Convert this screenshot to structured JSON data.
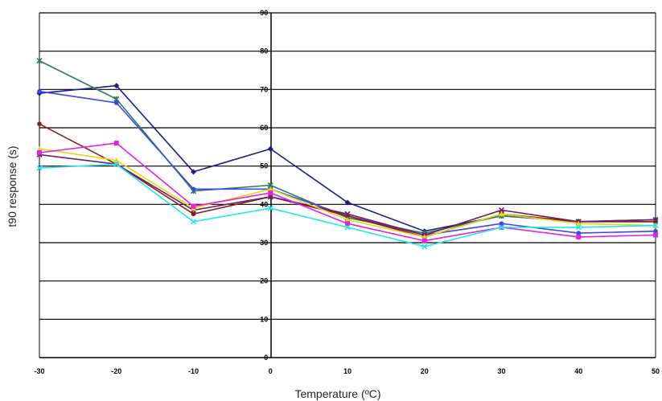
{
  "chart_data": {
    "type": "line",
    "title": "",
    "xlabel": "Temperature (ºC)",
    "ylabel": "t90 response (s)",
    "x": [
      -30,
      -20,
      -10,
      0,
      10,
      20,
      30,
      40,
      50
    ],
    "x_tick_labels": [
      "-30",
      "-20",
      "-10",
      "0",
      "10",
      "20",
      "30",
      "40",
      "50"
    ],
    "y_tick_labels": [
      "0",
      "10",
      "20",
      "30",
      "40",
      "50",
      "60",
      "70",
      "80",
      "90"
    ],
    "ylim": [
      0,
      90
    ],
    "grid": "horizontal",
    "legend": "none",
    "series": [
      {
        "color": "#1c1c8c",
        "marker": "diamond",
        "values": [
          69,
          71,
          48.5,
          54.5,
          40.5,
          33,
          37,
          35.5,
          36
        ]
      },
      {
        "color": "#2d7a5c",
        "marker": "star",
        "values": [
          77.5,
          67.5,
          43.5,
          45,
          36.5,
          32.5,
          37,
          35.5,
          35.5
        ]
      },
      {
        "color": "#3a4adf",
        "marker": "circle",
        "values": [
          69.5,
          66.5,
          44,
          44,
          37,
          32,
          35,
          32.5,
          33
        ]
      },
      {
        "color": "#8b1a1a",
        "marker": "circle",
        "values": [
          61,
          50.5,
          37.5,
          42,
          37,
          31.5,
          37.5,
          35.5,
          35.5
        ]
      },
      {
        "color": "#6b2060",
        "marker": "cross",
        "values": [
          53,
          50.5,
          38.5,
          42,
          37.5,
          32,
          38.5,
          35.5,
          36
        ]
      },
      {
        "color": "#e6d610",
        "marker": "triangle",
        "values": [
          54.5,
          51.5,
          39,
          44,
          36,
          31.5,
          37.5,
          35,
          34.5
        ]
      },
      {
        "color": "#e620e6",
        "marker": "square",
        "values": [
          53.5,
          56,
          39.5,
          43,
          35,
          30.5,
          34,
          31.5,
          32
        ]
      },
      {
        "color": "#1ee8e8",
        "marker": "cross",
        "values": [
          49.5,
          50.5,
          35.5,
          39,
          34,
          29,
          34,
          34,
          34.5
        ]
      }
    ]
  }
}
